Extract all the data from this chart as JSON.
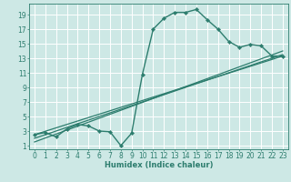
{
  "xlabel": "Humidex (Indice chaleur)",
  "bg_color": "#cde8e5",
  "line_color": "#2d7d6e",
  "grid_color": "#ffffff",
  "xlim": [
    -0.5,
    23.5
  ],
  "ylim": [
    0.5,
    20.5
  ],
  "xticks": [
    0,
    1,
    2,
    3,
    4,
    5,
    6,
    7,
    8,
    9,
    10,
    11,
    12,
    13,
    14,
    15,
    16,
    17,
    18,
    19,
    20,
    21,
    22,
    23
  ],
  "yticks": [
    1,
    3,
    5,
    7,
    9,
    11,
    13,
    15,
    17,
    19
  ],
  "series1_x": [
    0,
    1,
    2,
    3,
    4,
    5,
    6,
    7,
    8,
    9,
    10,
    11,
    12,
    13,
    14,
    15,
    16,
    17,
    18,
    19,
    20,
    21,
    22,
    23
  ],
  "series1_y": [
    2.5,
    2.8,
    2.2,
    3.3,
    3.9,
    3.7,
    3.0,
    2.9,
    1.0,
    2.7,
    10.8,
    17.0,
    18.5,
    19.3,
    19.3,
    19.7,
    18.3,
    17.0,
    15.3,
    14.5,
    14.9,
    14.7,
    13.3,
    13.3
  ],
  "series2_x": [
    0,
    23
  ],
  "series2_y": [
    2.5,
    13.3
  ],
  "series3_x": [
    0,
    23
  ],
  "series3_y": [
    2.0,
    13.5
  ],
  "series4_x": [
    0,
    23
  ],
  "series4_y": [
    1.5,
    14.0
  ],
  "tick_fontsize": 5.5,
  "xlabel_fontsize": 6.0,
  "marker_size": 2.2,
  "linewidth_main": 1.0,
  "linewidth_linear": 0.9
}
